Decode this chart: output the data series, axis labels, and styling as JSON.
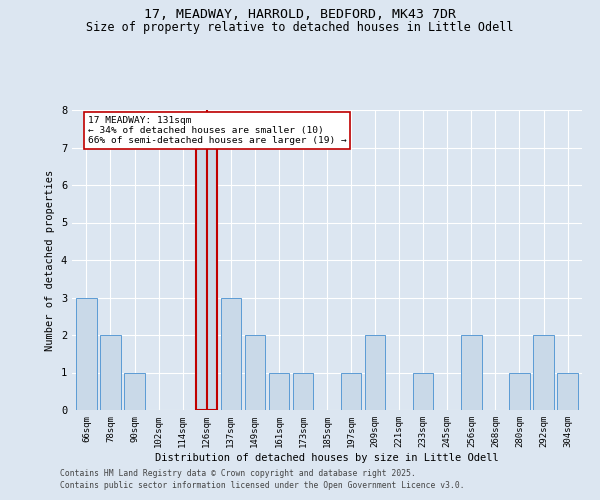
{
  "title1": "17, MEADWAY, HARROLD, BEDFORD, MK43 7DR",
  "title2": "Size of property relative to detached houses in Little Odell",
  "xlabel": "Distribution of detached houses by size in Little Odell",
  "ylabel": "Number of detached properties",
  "categories": [
    "66sqm",
    "78sqm",
    "90sqm",
    "102sqm",
    "114sqm",
    "126sqm",
    "137sqm",
    "149sqm",
    "161sqm",
    "173sqm",
    "185sqm",
    "197sqm",
    "209sqm",
    "221sqm",
    "233sqm",
    "245sqm",
    "256sqm",
    "268sqm",
    "280sqm",
    "292sqm",
    "304sqm"
  ],
  "values": [
    3,
    2,
    1,
    0,
    0,
    7,
    3,
    2,
    1,
    1,
    0,
    1,
    2,
    0,
    1,
    0,
    2,
    0,
    1,
    2,
    1
  ],
  "bar_color": "#c9d9e8",
  "bar_edge_color": "#5b9bd5",
  "highlight_index": 5,
  "highlight_edge_color": "#c00000",
  "vline_color": "#c00000",
  "annotation_text": "17 MEADWAY: 131sqm\n← 34% of detached houses are smaller (10)\n66% of semi-detached houses are larger (19) →",
  "annotation_box_color": "#ffffff",
  "annotation_box_edge": "#c00000",
  "ylim": [
    0,
    8
  ],
  "yticks": [
    0,
    1,
    2,
    3,
    4,
    5,
    6,
    7,
    8
  ],
  "background_color": "#dce6f1",
  "plot_background": "#dce6f1",
  "grid_color": "#ffffff",
  "footer1": "Contains HM Land Registry data © Crown copyright and database right 2025.",
  "footer2": "Contains public sector information licensed under the Open Government Licence v3.0."
}
